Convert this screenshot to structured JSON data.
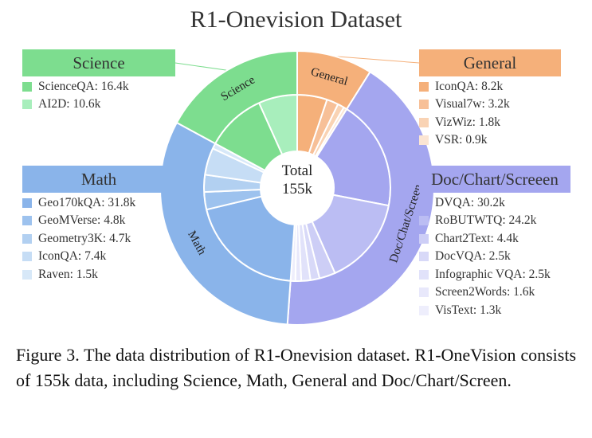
{
  "title": "R1-Onevision Dataset",
  "center_label": {
    "line1": "Total",
    "line2": "155k"
  },
  "colors": {
    "science": "#7ddd8f",
    "general": "#f5b07a",
    "doc": "#a4a6ef",
    "math": "#8ab4ea"
  },
  "chart_data": {
    "type": "pie",
    "subtype": "sunburst",
    "title": "R1-Onevision Dataset",
    "total": "155k",
    "categories": [
      {
        "name": "Science",
        "color": "#7ddd8f",
        "items": [
          {
            "name": "ScienceQA",
            "value": 16.4,
            "label": "ScienceQA: 16.4k",
            "color": "#7ddd8f"
          },
          {
            "name": "AI2D",
            "value": 10.6,
            "label": "AI2D: 10.6k",
            "color": "#a8eebc"
          }
        ]
      },
      {
        "name": "General",
        "color": "#f5b07a",
        "items": [
          {
            "name": "IconQA",
            "value": 8.2,
            "label": "IconQA: 8.2k",
            "color": "#f5b07a"
          },
          {
            "name": "Visual7w",
            "value": 3.2,
            "label": "Visual7w: 3.2k",
            "color": "#f7c098"
          },
          {
            "name": "VizWiz",
            "value": 1.8,
            "label": "VizWiz: 1.8k",
            "color": "#f9d3b4"
          },
          {
            "name": "VSR",
            "value": 0.9,
            "label": "VSR: 0.9k",
            "color": "#fbe5d3"
          }
        ]
      },
      {
        "name": "Doc/Chat/Screen",
        "panel_title": "Doc/Chart/Screeen",
        "color": "#a4a6ef",
        "items": [
          {
            "name": "DVQA",
            "value": 30.2,
            "label": "DVQA: 30.2k",
            "color": "#a4a6ef"
          },
          {
            "name": "RoBUTWTQ",
            "value": 24.2,
            "label": "RoBUTWTQ: 24.2k",
            "color": "#bbbdf3"
          },
          {
            "name": "Chart2Text",
            "value": 4.4,
            "label": "Chart2Text: 4.4k",
            "color": "#cdcef6"
          },
          {
            "name": "DocVQA",
            "value": 2.5,
            "label": "DocVQA: 2.5k",
            "color": "#d8d9f8"
          },
          {
            "name": "Infographic VQA",
            "value": 2.5,
            "label": "Infographic VQA: 2.5k",
            "color": "#e1e2fa"
          },
          {
            "name": "Screen2Words",
            "value": 1.6,
            "label": "Screen2Words: 1.6k",
            "color": "#e8e8fb"
          },
          {
            "name": "VisText",
            "value": 1.3,
            "label": "VisText: 1.3k",
            "color": "#eeeefc"
          }
        ]
      },
      {
        "name": "Math",
        "color": "#8ab4ea",
        "items": [
          {
            "name": "Geo170kQA",
            "value": 31.8,
            "label": "Geo170kQA: 31.8k",
            "color": "#8ab4ea"
          },
          {
            "name": "GeoMVerse",
            "value": 4.8,
            "label": "GeoMVerse: 4.8k",
            "color": "#9dc2ee"
          },
          {
            "name": "Geometry3K",
            "value": 4.7,
            "label": "Geometry3K: 4.7k",
            "color": "#b2d0f1"
          },
          {
            "name": "IconQA",
            "value": 7.4,
            "label": "IconQA: 7.4k",
            "color": "#c6ddf5"
          },
          {
            "name": "Raven",
            "value": 1.5,
            "label": "Raven: 1.5k",
            "color": "#d7e8f8"
          }
        ]
      }
    ]
  },
  "caption": "Figure 3.  The data distribution of R1-Onevision dataset.  R1-OneVision consists of 155k data, including Science, Math, General and Doc/Chart/Screen."
}
